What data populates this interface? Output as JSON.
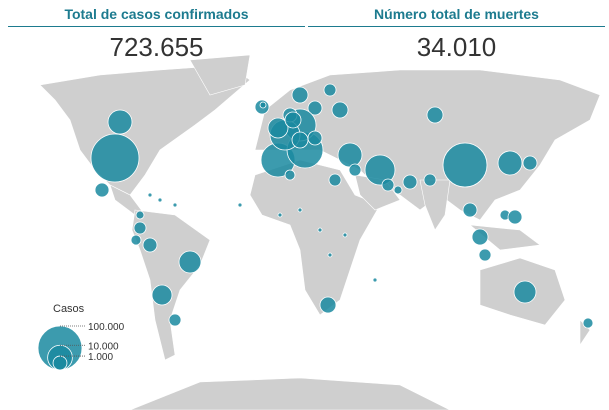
{
  "header": {
    "cases_title": "Total de casos confirmados",
    "cases_total": "723.655",
    "deaths_title": "Número total de muertes",
    "deaths_total": "34.010"
  },
  "legend": {
    "title": "Casos",
    "sizes": [
      {
        "value": 100000,
        "label": "100.000"
      },
      {
        "value": 10000,
        "label": "10.000"
      },
      {
        "value": 1000,
        "label": "1.000"
      }
    ]
  }
}
